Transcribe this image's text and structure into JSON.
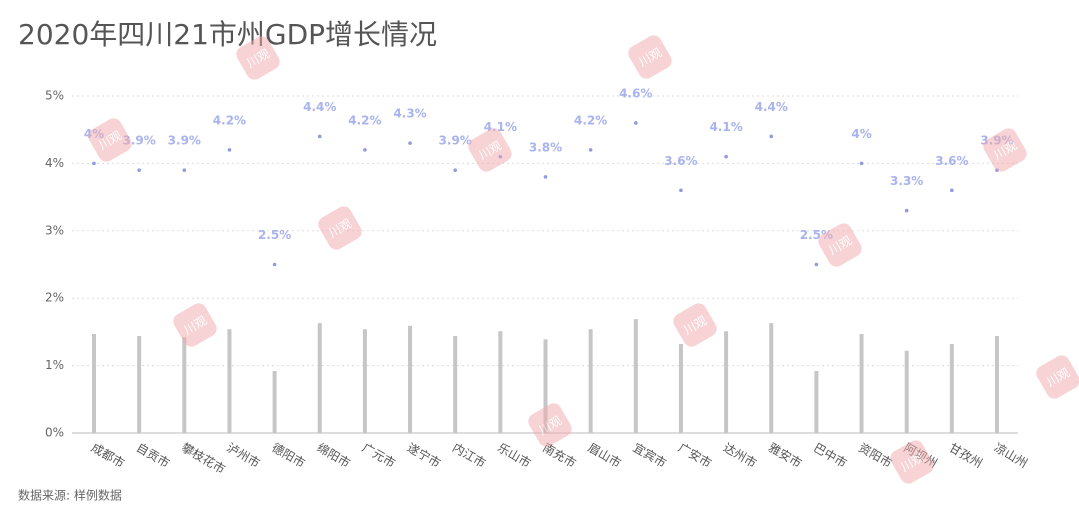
{
  "chart_data": {
    "type": "bar",
    "title": "2020年四川21市州GDP增长情况",
    "source": "数据来源: 样例数据",
    "watermark": "川观",
    "categories": [
      "成都市",
      "自贡市",
      "攀枝花市",
      "泸州市",
      "德阳市",
      "绵阳市",
      "广元市",
      "遂宁市",
      "内江市",
      "乐山市",
      "南充市",
      "眉山市",
      "宜宾市",
      "广安市",
      "达州市",
      "雅安市",
      "巴中市",
      "资阳市",
      "阿坝州",
      "甘孜州",
      "凉山州"
    ],
    "series": [
      {
        "type": "scatter",
        "color": "#8f9ae0",
        "label_color": "#a9b3ef",
        "values": [
          4,
          3.9,
          3.9,
          4.2,
          2.5,
          4.4,
          4.2,
          4.3,
          3.9,
          4.1,
          3.8,
          4.2,
          4.6,
          3.6,
          4.1,
          4.4,
          2.5,
          4,
          3.3,
          3.6,
          3.9
        ],
        "value_labels": [
          "4%",
          "3.9%",
          "3.9%",
          "4.2%",
          "2.5%",
          "4.4%",
          "4.2%",
          "4.3%",
          "3.9%",
          "4.1%",
          "3.8%",
          "4.2%",
          "4.6%",
          "3.6%",
          "4.1%",
          "4.4%",
          "2.5%",
          "4%",
          "3.3%",
          "3.6%",
          "3.9%"
        ]
      },
      {
        "type": "bar",
        "color": "#c6c6c6",
        "values": [
          1.47,
          1.44,
          1.42,
          1.54,
          0.92,
          1.63,
          1.54,
          1.59,
          1.44,
          1.51,
          1.39,
          1.54,
          1.69,
          1.32,
          1.51,
          1.63,
          0.92,
          1.47,
          1.22,
          1.32,
          1.44
        ]
      }
    ],
    "ylim": [
      0,
      5
    ],
    "yticks": [
      {
        "value": 0,
        "label": "0%"
      },
      {
        "value": 1,
        "label": "1%"
      },
      {
        "value": 2,
        "label": "2%"
      },
      {
        "value": 3,
        "label": "3%"
      },
      {
        "value": 4,
        "label": "4%"
      },
      {
        "value": 5,
        "label": "5%"
      }
    ],
    "grid": true
  }
}
